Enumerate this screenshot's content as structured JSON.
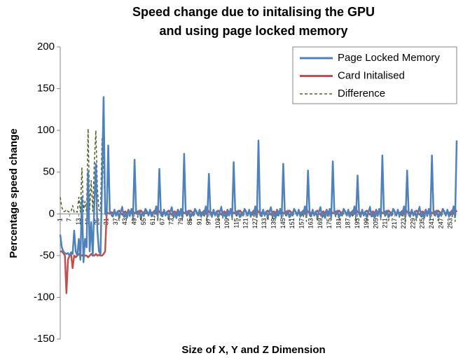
{
  "chart_data": {
    "type": "line",
    "title": [
      "Speed change due to initalising the GPU",
      "and using page locked memory"
    ],
    "x_label": "Size of X, Y and Z Dimension",
    "y_label": "Percentage speed change",
    "ylim": [
      -150,
      200
    ],
    "yticks": [
      -150,
      -100,
      -50,
      0,
      50,
      100,
      150,
      200
    ],
    "grid": false,
    "legend": "top-right",
    "categories": [
      1,
      null,
      null,
      null,
      null,
      null,
      7,
      null,
      null,
      null,
      null,
      null,
      13,
      null,
      null,
      null,
      null,
      null,
      19,
      null,
      null,
      null,
      null,
      null,
      25,
      null,
      null,
      null,
      null,
      null,
      31,
      null,
      null,
      null,
      null,
      null,
      37,
      null,
      null,
      null,
      null,
      null,
      43,
      null,
      null,
      null,
      null,
      null,
      49,
      null,
      null,
      null,
      null,
      null,
      55,
      null,
      null,
      null,
      null,
      null,
      61,
      null,
      null,
      null,
      null,
      null,
      67,
      null,
      null,
      null,
      null,
      null,
      73,
      null,
      null,
      null,
      null,
      null,
      79,
      null,
      null,
      null,
      null,
      null,
      85,
      null,
      null,
      null,
      null,
      null,
      91,
      null,
      null,
      null,
      null,
      null,
      97,
      null,
      null,
      null,
      null,
      null,
      103,
      null,
      null,
      null,
      null,
      null,
      109,
      null,
      null,
      null,
      null,
      null,
      115,
      null,
      null,
      null,
      null,
      null,
      121,
      null,
      null,
      null,
      null,
      null,
      127,
      null,
      null,
      null,
      null,
      null,
      133,
      null,
      null,
      null,
      null,
      null,
      139,
      null,
      null,
      null,
      null,
      null,
      145,
      null,
      null,
      null,
      null,
      null,
      151,
      null,
      null,
      null,
      null,
      null,
      157,
      null,
      null,
      null,
      null,
      null,
      163,
      null,
      null,
      null,
      null,
      null,
      169,
      null,
      null,
      null,
      null,
      null,
      175,
      null,
      null,
      null,
      null,
      null,
      181,
      null,
      null,
      null,
      null,
      null,
      187,
      null,
      null,
      null,
      null,
      null,
      193,
      null,
      null,
      null,
      null,
      null,
      199,
      null,
      null,
      null,
      null,
      null,
      205,
      null,
      null,
      null,
      null,
      null,
      211,
      null,
      null,
      null,
      null,
      null,
      217,
      null,
      null,
      null,
      null,
      null,
      223,
      null,
      null,
      null,
      null,
      null,
      229,
      null,
      null,
      null,
      null,
      null,
      235,
      null,
      null,
      null,
      null,
      null,
      241,
      null,
      null,
      null,
      null,
      null,
      247,
      null,
      null,
      null,
      null,
      null,
      253,
      null,
      null,
      null,
      null
    ],
    "series": [
      {
        "name": "Page Locked Memory",
        "color": "#4f81bd",
        "dash": false,
        "values": [
          -25,
          -40,
          -45,
          -47,
          -48,
          -47,
          -50,
          -46,
          -48,
          -20,
          -45,
          -50,
          -30,
          -55,
          20,
          -58,
          -30,
          -40,
          50,
          -45,
          -10,
          -50,
          10,
          60,
          -20,
          -45,
          -48,
          40,
          140,
          0,
          -2,
          82,
          3,
          0,
          -3,
          5,
          -2,
          3,
          -4,
          2,
          8,
          -3,
          1,
          -5,
          4,
          -2,
          6,
          -4,
          65,
          2,
          -1,
          4,
          -4,
          1,
          -2,
          6,
          3,
          -2,
          5,
          -3,
          2,
          0,
          9,
          -3,
          54,
          0,
          -3,
          5,
          -2,
          3,
          -4,
          2,
          8,
          -3,
          1,
          -5,
          4,
          -2,
          6,
          -4,
          72,
          2,
          -1,
          4,
          -4,
          1,
          -2,
          6,
          3,
          -2,
          5,
          -3,
          2,
          0,
          9,
          -3,
          48,
          0,
          -3,
          5,
          -2,
          3,
          -4,
          2,
          8,
          -3,
          1,
          -5,
          4,
          -2,
          6,
          -4,
          62,
          2,
          -1,
          4,
          -4,
          1,
          -2,
          6,
          3,
          -2,
          5,
          -3,
          2,
          0,
          9,
          -3,
          88,
          0,
          -3,
          5,
          -2,
          3,
          -4,
          2,
          8,
          -3,
          1,
          -5,
          4,
          -2,
          6,
          -4,
          60,
          2,
          -1,
          4,
          -4,
          1,
          -2,
          6,
          3,
          -2,
          5,
          -3,
          2,
          0,
          9,
          -3,
          52,
          0,
          -3,
          5,
          -2,
          3,
          -4,
          2,
          8,
          -3,
          1,
          -5,
          4,
          -2,
          6,
          -4,
          63,
          2,
          -1,
          4,
          -4,
          1,
          -2,
          6,
          3,
          -2,
          5,
          -3,
          2,
          0,
          9,
          -3,
          46,
          0,
          -3,
          5,
          -2,
          3,
          -4,
          2,
          8,
          -3,
          1,
          -5,
          4,
          -2,
          6,
          -4,
          70,
          2,
          -1,
          4,
          -4,
          1,
          -2,
          6,
          3,
          -2,
          5,
          -3,
          2,
          0,
          9,
          -3,
          52,
          0,
          -3,
          5,
          -2,
          3,
          -4,
          2,
          8,
          -3,
          1,
          -5,
          4,
          -2,
          6,
          -4,
          70,
          2,
          -1,
          4,
          -4,
          1,
          -2,
          6,
          3,
          -2,
          5,
          -3,
          2,
          0,
          9,
          -3,
          88
        ]
      },
      {
        "name": "Card Initalised",
        "color": "#c0504d",
        "dash": false,
        "values": [
          -45,
          -45,
          -47,
          -50,
          -95,
          -55,
          -50,
          -48,
          -65,
          -50,
          -52,
          -50,
          -48,
          -50,
          -50,
          -48,
          -50,
          -50,
          -52,
          -50,
          -48,
          -50,
          -50,
          -48,
          -50,
          -49,
          -50,
          -50,
          -48,
          -45,
          2,
          1,
          0,
          2,
          1,
          3,
          0,
          2,
          4,
          1,
          -1,
          2,
          3,
          0,
          5,
          1,
          2,
          3,
          1,
          1,
          3,
          0,
          4,
          2,
          1,
          5,
          2,
          0,
          3,
          1,
          2,
          4,
          0,
          6,
          2,
          2,
          1,
          3,
          0,
          2,
          4,
          1,
          -1,
          2,
          3,
          0,
          5,
          1,
          2,
          3,
          1,
          1,
          3,
          0,
          4,
          2,
          1,
          5,
          2,
          0,
          3,
          1,
          2,
          4,
          0,
          6,
          2,
          2,
          1,
          3,
          0,
          2,
          4,
          1,
          -1,
          2,
          3,
          0,
          5,
          1,
          2,
          3,
          1,
          1,
          3,
          0,
          4,
          2,
          1,
          5,
          2,
          0,
          3,
          1,
          2,
          4,
          0,
          6,
          2,
          2,
          1,
          3,
          0,
          2,
          4,
          1,
          -1,
          2,
          3,
          0,
          5,
          1,
          2,
          3,
          1,
          1,
          3,
          0,
          4,
          2,
          1,
          5,
          2,
          0,
          3,
          1,
          2,
          4,
          0,
          6,
          2,
          2,
          1,
          3,
          0,
          2,
          4,
          1,
          -1,
          2,
          3,
          0,
          5,
          1,
          2,
          3,
          1,
          1,
          3,
          0,
          4,
          2,
          1,
          5,
          2,
          0,
          3,
          1,
          2,
          4,
          0,
          6,
          2,
          2,
          1,
          3,
          0,
          2,
          4,
          1,
          -1,
          2,
          3,
          0,
          5,
          1,
          2,
          3,
          1,
          1,
          3,
          0,
          4,
          2,
          1,
          5,
          2,
          0,
          3,
          1,
          2,
          4,
          0,
          6,
          2,
          2,
          1,
          3,
          0,
          2,
          4,
          1,
          -1,
          2,
          3,
          0,
          5,
          1,
          2,
          3,
          1,
          1,
          3,
          0,
          4,
          2,
          1,
          5,
          2,
          0,
          3,
          1,
          2,
          4,
          0,
          6,
          2
        ]
      },
      {
        "name": "Difference",
        "color": "#4f6228",
        "dash": true,
        "values": [
          20,
          8,
          3,
          3,
          5,
          3,
          2,
          3,
          10,
          2,
          3,
          2,
          20,
          2,
          55,
          3,
          15,
          2,
          102,
          5,
          40,
          3,
          60,
          100,
          30,
          5,
          3,
          90,
          60,
          5,
          -4,
          81,
          3,
          -2,
          -4,
          2,
          -2,
          1,
          -8,
          1,
          9,
          -5,
          -2,
          -5,
          -1,
          -3,
          4,
          -7,
          64,
          1,
          -4,
          4,
          -8,
          -1,
          -3,
          1,
          1,
          -2,
          2,
          -4,
          0,
          -4,
          9,
          -9,
          52,
          -2,
          -4,
          2,
          -2,
          1,
          -8,
          1,
          9,
          -5,
          -2,
          -5,
          -1,
          -3,
          4,
          -7,
          71,
          1,
          -4,
          4,
          -8,
          -1,
          -3,
          1,
          1,
          -2,
          2,
          -4,
          0,
          -4,
          9,
          -9,
          46,
          -2,
          -4,
          2,
          -2,
          1,
          -8,
          1,
          9,
          -5,
          -2,
          -5,
          -1,
          -3,
          4,
          -7,
          61,
          1,
          -4,
          4,
          -8,
          -1,
          -3,
          1,
          1,
          -2,
          2,
          -4,
          0,
          -4,
          9,
          -9,
          86,
          -2,
          -4,
          2,
          -2,
          1,
          -8,
          1,
          9,
          -5,
          -2,
          -5,
          -1,
          -3,
          4,
          -7,
          59,
          1,
          -4,
          4,
          -8,
          -1,
          -3,
          1,
          1,
          -2,
          2,
          -4,
          0,
          -4,
          9,
          -9,
          50,
          -2,
          -4,
          2,
          -2,
          1,
          -8,
          1,
          9,
          -5,
          -2,
          -5,
          -1,
          -3,
          4,
          -7,
          62,
          1,
          -4,
          4,
          -8,
          -1,
          -3,
          1,
          1,
          -2,
          2,
          -4,
          0,
          -4,
          9,
          -9,
          44,
          -2,
          -4,
          2,
          -2,
          1,
          -8,
          1,
          9,
          -5,
          -2,
          -5,
          -1,
          -3,
          4,
          -7,
          69,
          1,
          -4,
          4,
          -8,
          -1,
          -3,
          1,
          1,
          -2,
          2,
          -4,
          0,
          -4,
          9,
          -9,
          50,
          -2,
          -4,
          2,
          -2,
          1,
          -8,
          1,
          9,
          -5,
          -2,
          -5,
          -1,
          -3,
          4,
          -7,
          69,
          1,
          -4,
          4,
          -8,
          -1,
          -3,
          1,
          1,
          -2,
          2,
          -4,
          0,
          -4,
          9,
          -9,
          86
        ]
      }
    ]
  }
}
